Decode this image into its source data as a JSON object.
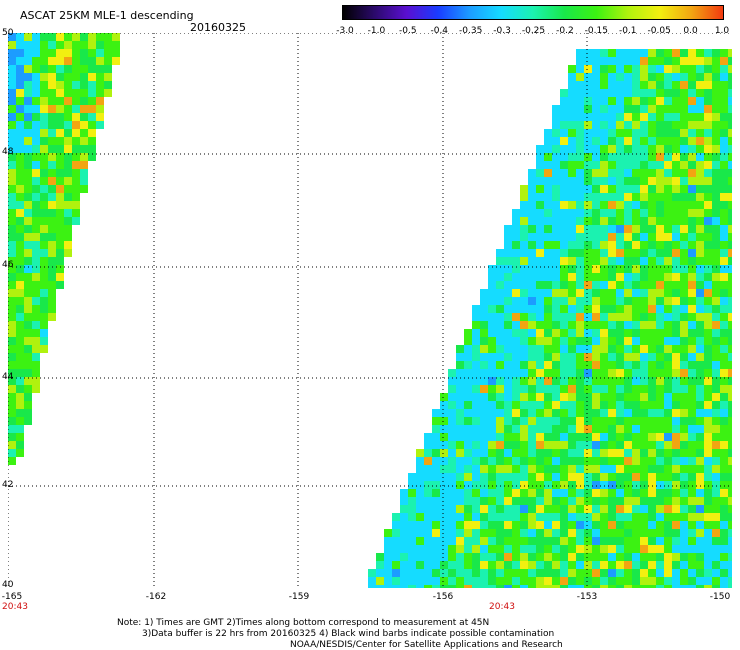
{
  "header": {
    "title": "ASCAT 25KM MLE-1 descending",
    "date": "20160325"
  },
  "colorbar": {
    "labels": [
      "-3.0",
      "-1.0",
      "-0.5",
      "-0.4",
      "-0.35",
      "-0.3",
      "-0.25",
      "-0.2",
      "-0.15",
      "-0.1",
      "-0.05",
      "0.0",
      "1.0"
    ],
    "colors": [
      "#000000",
      "#2b0a6b",
      "#5a0fd0",
      "#1a3cff",
      "#1c9cff",
      "#15dcff",
      "#1bf2b0",
      "#19e84a",
      "#3cf212",
      "#b0f20e",
      "#f2f010",
      "#f2a512",
      "#f23a10"
    ]
  },
  "map": {
    "lat_labels": [
      "50",
      "48",
      "46",
      "44",
      "42",
      "40"
    ],
    "lon_labels": [
      "-165",
      "-162",
      "-159",
      "-156",
      "-153",
      "-150"
    ],
    "time_labels": [
      "20:43",
      "20:43"
    ]
  },
  "notes": {
    "line1": "Note: 1) Times are GMT 2)Times along bottom correspond to measurement at 45N",
    "line2": "3)Data buffer is 22 hrs from 20160325 4) Black wind barbs indicate possible contamination",
    "line3": "NOAA/NESDIS/Center for Satellite Applications and Research"
  }
}
